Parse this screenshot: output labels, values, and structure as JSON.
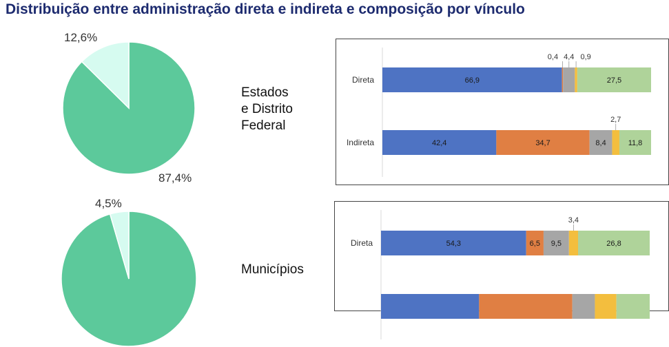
{
  "header": {
    "title": "Distribuição entre administração direta e indireta e composição por vínculo"
  },
  "sections": [
    {
      "label_lines": [
        "Estados",
        "e Distrito",
        "Federal"
      ],
      "pie_small_label": "12,6%",
      "pie_large_label": "87,4%"
    },
    {
      "label_lines": [
        "Municípios"
      ],
      "pie_small_label": "4,5%"
    }
  ],
  "colors": {
    "pie_large": "#5cc99b",
    "pie_small": "#d6fbf0",
    "bar_series": [
      "#4e73c3",
      "#e07f43",
      "#a6a6a6",
      "#f3be3e",
      "#afd39a"
    ]
  },
  "chart_data": [
    {
      "type": "pie",
      "values": [
        87.4,
        12.6
      ],
      "labels": [
        "87,4%",
        "12,6%"
      ]
    },
    {
      "type": "bar",
      "orientation": "horizontal",
      "stacked": true,
      "categories": [
        "Direta",
        "Indireta"
      ],
      "series": [
        {
          "values": [
            66.9,
            42.4
          ],
          "labels": [
            "66,9",
            "42,4"
          ]
        },
        {
          "values": [
            0.4,
            34.7
          ],
          "labels": [
            "0,4",
            "34,7"
          ]
        },
        {
          "values": [
            4.4,
            8.4
          ],
          "labels": [
            "4,4",
            "8,4"
          ]
        },
        {
          "values": [
            0.9,
            2.7
          ],
          "labels": [
            "0,9",
            "2,7"
          ]
        },
        {
          "values": [
            27.5,
            11.8
          ],
          "labels": [
            "27,5",
            "11,8"
          ]
        }
      ]
    },
    {
      "type": "pie",
      "values": [
        95.5,
        4.5
      ],
      "labels": [
        "",
        "4,5%"
      ]
    },
    {
      "type": "bar",
      "orientation": "horizontal",
      "stacked": true,
      "categories": [
        "Direta",
        ""
      ],
      "series": [
        {
          "values": [
            54.3,
            36.5
          ],
          "labels": [
            "54,3",
            ""
          ]
        },
        {
          "values": [
            6.5,
            34.7
          ],
          "labels": [
            "6,5",
            ""
          ]
        },
        {
          "values": [
            9.5,
            8.4
          ],
          "labels": [
            "9,5",
            ""
          ]
        },
        {
          "values": [
            3.4,
            8.0
          ],
          "labels": [
            "3,4",
            ""
          ]
        },
        {
          "values": [
            26.8,
            12.4
          ],
          "labels": [
            "26,8",
            ""
          ]
        }
      ]
    }
  ]
}
